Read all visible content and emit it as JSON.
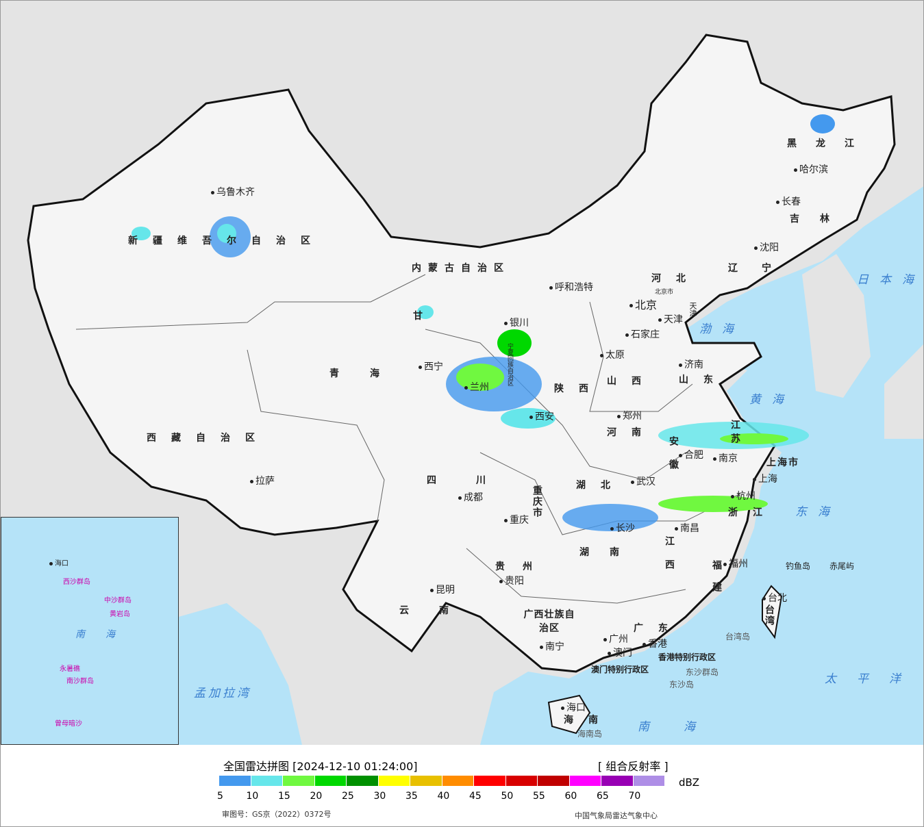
{
  "legend": {
    "title": "全国雷达拼图 [2024-12-10 01:24:00]",
    "product": "[ 组合反射率 ]",
    "unit": "dBZ",
    "colors": [
      "#4499ee",
      "#66e6ea",
      "#70f840",
      "#00d800",
      "#009000",
      "#ffff00",
      "#e8c000",
      "#ff8c00",
      "#ff0000",
      "#d80000",
      "#c00000",
      "#ff00ff",
      "#9800b4",
      "#ae8ee6"
    ],
    "ticks": [
      "5",
      "10",
      "15",
      "20",
      "25",
      "30",
      "35",
      "40",
      "45",
      "50",
      "55",
      "60",
      "65",
      "70"
    ],
    "approval": "审图号：GS京（2022）0372号",
    "organization": "中国气象局雷达气象中心"
  },
  "map": {
    "colors": {
      "sea": "#b5e3f8",
      "land": "#f5f5f5",
      "foreign": "#e4e4e4",
      "border": "#111111"
    },
    "provinces": [
      "新疆维吾尔自治区",
      "西藏自治区",
      "青海",
      "甘",
      "内蒙古自治区",
      "黑龙江",
      "吉林",
      "辽宁",
      "河北",
      "山西",
      "山东",
      "河南",
      "陕西",
      "宁夏回族自治区",
      "四川",
      "重庆市",
      "湖北",
      "安徽",
      "江苏",
      "浙江",
      "湖南",
      "江西",
      "福建",
      "贵州",
      "云南",
      "广西壮族自治区",
      "广东",
      "海南",
      "台湾",
      "上海市",
      "天津",
      "北京市",
      "香港特别行政区",
      "澳门特别行政区"
    ],
    "cities": [
      "乌鲁木齐",
      "拉萨",
      "西宁",
      "兰州",
      "银川",
      "呼和浩特",
      "北京",
      "天津",
      "石家庄",
      "太原",
      "济南",
      "郑州",
      "西安",
      "成都",
      "重庆",
      "武汉",
      "合肥",
      "南京",
      "上海",
      "杭州",
      "南昌",
      "长沙",
      "贵阳",
      "昆明",
      "南宁",
      "广州",
      "香港",
      "澳门",
      "福州",
      "台北",
      "海口",
      "沈阳",
      "长春",
      "哈尔滨"
    ],
    "seas": [
      "渤海",
      "黄海",
      "东海",
      "南海",
      "太平洋",
      "日本海",
      "孟加拉湾"
    ],
    "islands": [
      "钓鱼岛",
      "赤尾屿",
      "台湾岛",
      "东沙群岛",
      "东沙岛",
      "海南岛"
    ],
    "inset": {
      "labels": [
        "南海",
        "中沙群岛",
        "西沙群岛",
        "南沙群岛",
        "黄岩岛",
        "永暑礁",
        "曾母暗沙",
        "海口"
      ]
    }
  }
}
